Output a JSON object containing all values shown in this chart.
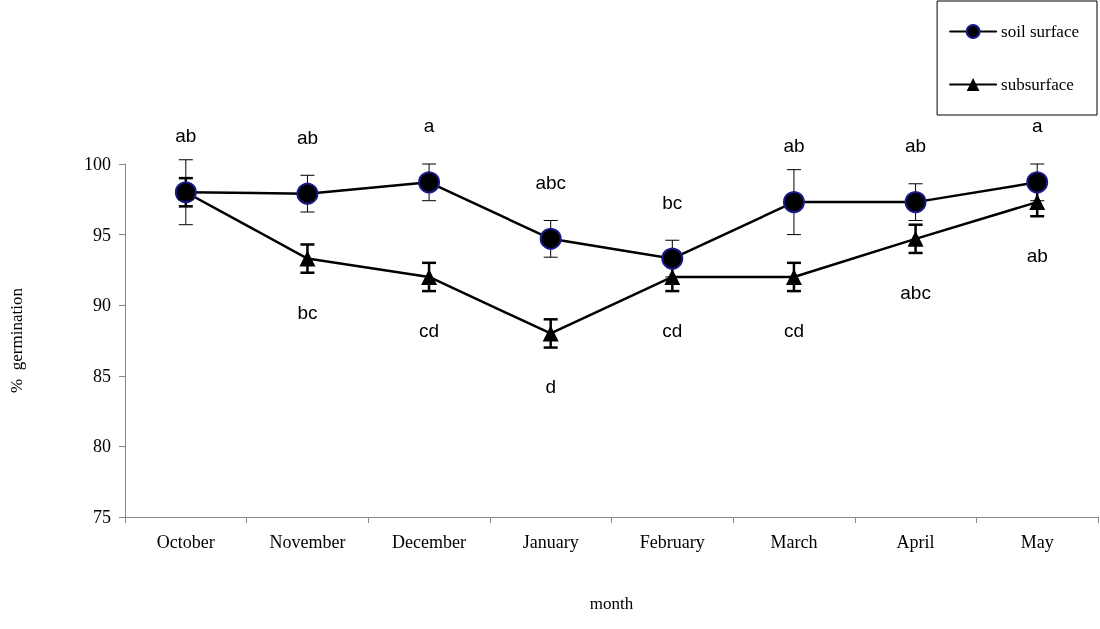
{
  "chart_data": {
    "type": "line",
    "xlabel": "month",
    "ylabel": "%  germination",
    "categories": [
      "October",
      "November",
      "December",
      "January",
      "February",
      "March",
      "April",
      "May"
    ],
    "ylim": [
      75,
      100
    ],
    "yticks": [
      75,
      80,
      85,
      90,
      95,
      100
    ],
    "grid": false,
    "legend": "top right",
    "line_style": "solid",
    "series": [
      {
        "name": "soil surface",
        "color": "#000000",
        "marker": "circle",
        "values": [
          98.0,
          97.9,
          98.7,
          94.7,
          93.3,
          97.3,
          97.3,
          98.7
        ],
        "errors": [
          2.3,
          1.3,
          1.3,
          1.3,
          1.3,
          2.3,
          1.3,
          1.3
        ],
        "value_labels": [
          "ab",
          "ab",
          "a",
          "abc",
          "bc",
          "ab",
          "ab",
          "a"
        ]
      },
      {
        "name": "subsurface",
        "color": "#000000",
        "marker": "triangle",
        "values": [
          98.0,
          93.3,
          92.0,
          88.0,
          92.0,
          92.0,
          94.7,
          97.3
        ],
        "errors": [
          1.0,
          1.0,
          1.0,
          1.0,
          1.0,
          1.0,
          1.0,
          1.0
        ],
        "value_labels": [
          null,
          "bc",
          "cd",
          "d",
          "cd",
          "cd",
          "abc",
          "ab"
        ]
      }
    ]
  }
}
